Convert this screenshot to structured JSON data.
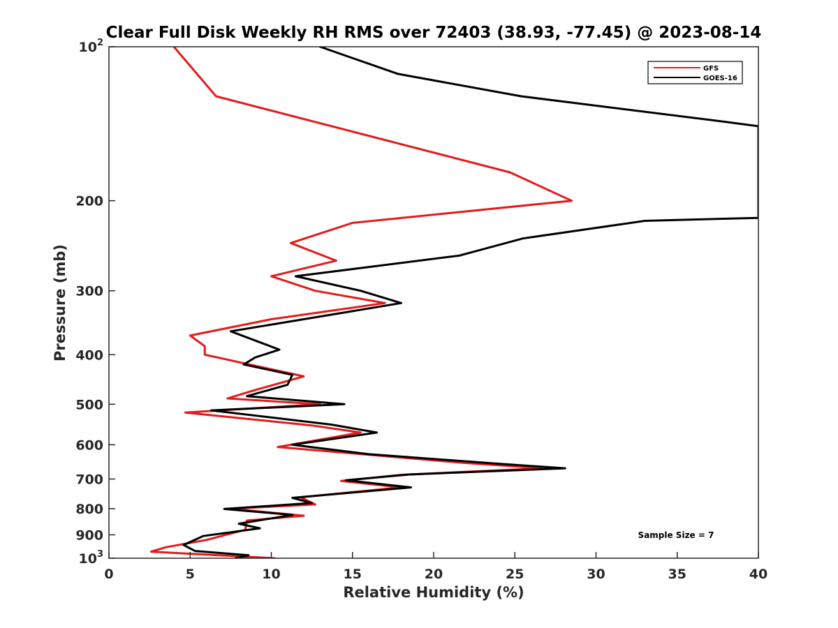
{
  "chart_data": {
    "type": "line",
    "title": "Clear Full Disk Weekly RH RMS over 72403 (38.93, -77.45) @ 2023-08-14",
    "xlabel": "Relative Humidity (%)",
    "ylabel": "Pressure (mb)",
    "xlim": [
      0,
      40
    ],
    "ylim": [
      100,
      1000
    ],
    "y_scale": "log",
    "y_reversed": true,
    "x_ticks": [
      0,
      5,
      10,
      15,
      20,
      25,
      30,
      35,
      40
    ],
    "x_tick_labels": [
      "0",
      "5",
      "10",
      "15",
      "20",
      "25",
      "30",
      "35",
      "40"
    ],
    "y_ticks": [
      100,
      200,
      300,
      400,
      500,
      600,
      700,
      800,
      900,
      1000
    ],
    "y_tick_labels": [
      {
        "base": "10",
        "exp": "2"
      },
      {
        "base": "200",
        "exp": ""
      },
      {
        "base": "300",
        "exp": ""
      },
      {
        "base": "400",
        "exp": ""
      },
      {
        "base": "500",
        "exp": ""
      },
      {
        "base": "600",
        "exp": ""
      },
      {
        "base": "700",
        "exp": ""
      },
      {
        "base": "800",
        "exp": ""
      },
      {
        "base": "900",
        "exp": ""
      },
      {
        "base": "10",
        "exp": "3"
      }
    ],
    "grid": false,
    "legend_position": "top-right",
    "annotation": "Sample Size = 7",
    "series": [
      {
        "name": "GFS",
        "color": "#e41a1c",
        "points": [
          [
            4.0,
            100
          ],
          [
            6.6,
            125
          ],
          [
            24.7,
            176
          ],
          [
            28.5,
            200
          ],
          [
            15.0,
            221
          ],
          [
            11.2,
            242
          ],
          [
            14.0,
            262
          ],
          [
            10.0,
            281
          ],
          [
            12.7,
            300
          ],
          [
            17.0,
            317
          ],
          [
            10.0,
            341
          ],
          [
            5.0,
            367
          ],
          [
            5.9,
            385
          ],
          [
            5.9,
            400
          ],
          [
            12.0,
            441
          ],
          [
            9.0,
            469
          ],
          [
            7.3,
            487
          ],
          [
            13.0,
            500
          ],
          [
            4.7,
            519
          ],
          [
            12.5,
            550
          ],
          [
            15.5,
            568
          ],
          [
            10.4,
            606
          ],
          [
            21.6,
            650
          ],
          [
            26.7,
            667
          ],
          [
            18.0,
            687
          ],
          [
            14.3,
            706
          ],
          [
            18.0,
            727
          ],
          [
            11.8,
            760
          ],
          [
            12.7,
            785
          ],
          [
            7.5,
            800
          ],
          [
            12.0,
            826
          ],
          [
            8.5,
            844
          ],
          [
            8.4,
            880
          ],
          [
            6.0,
            921
          ],
          [
            3.5,
            952
          ],
          [
            2.6,
            971
          ],
          [
            10.2,
            1000
          ]
        ]
      },
      {
        "name": "GOES-16",
        "color": "#000000",
        "points": [
          [
            13.0,
            100
          ],
          [
            17.8,
            113
          ],
          [
            25.4,
            125
          ],
          [
            37.8,
            140
          ],
          [
            40.0,
            143
          ],
          [
            40.0,
            216
          ],
          [
            33.0,
            219
          ],
          [
            25.5,
            237
          ],
          [
            21.6,
            256
          ],
          [
            11.5,
            281
          ],
          [
            15.5,
            300
          ],
          [
            18.0,
            317
          ],
          [
            12.0,
            341
          ],
          [
            7.5,
            360
          ],
          [
            10.5,
            391
          ],
          [
            9.0,
            405
          ],
          [
            8.3,
            418
          ],
          [
            11.3,
            438
          ],
          [
            11.0,
            458
          ],
          [
            8.5,
            482
          ],
          [
            14.5,
            500
          ],
          [
            6.3,
            514
          ],
          [
            13.7,
            548
          ],
          [
            16.5,
            568
          ],
          [
            11.3,
            600
          ],
          [
            16.0,
            626
          ],
          [
            23.8,
            653
          ],
          [
            28.1,
            667
          ],
          [
            18.5,
            686
          ],
          [
            14.6,
            704
          ],
          [
            18.6,
            727
          ],
          [
            11.3,
            762
          ],
          [
            12.5,
            780
          ],
          [
            7.1,
            801
          ],
          [
            11.3,
            823
          ],
          [
            8.0,
            856
          ],
          [
            9.3,
            874
          ],
          [
            5.8,
            905
          ],
          [
            4.6,
            942
          ],
          [
            5.3,
            968
          ],
          [
            8.6,
            987
          ],
          [
            7.8,
            1000
          ]
        ]
      }
    ]
  }
}
